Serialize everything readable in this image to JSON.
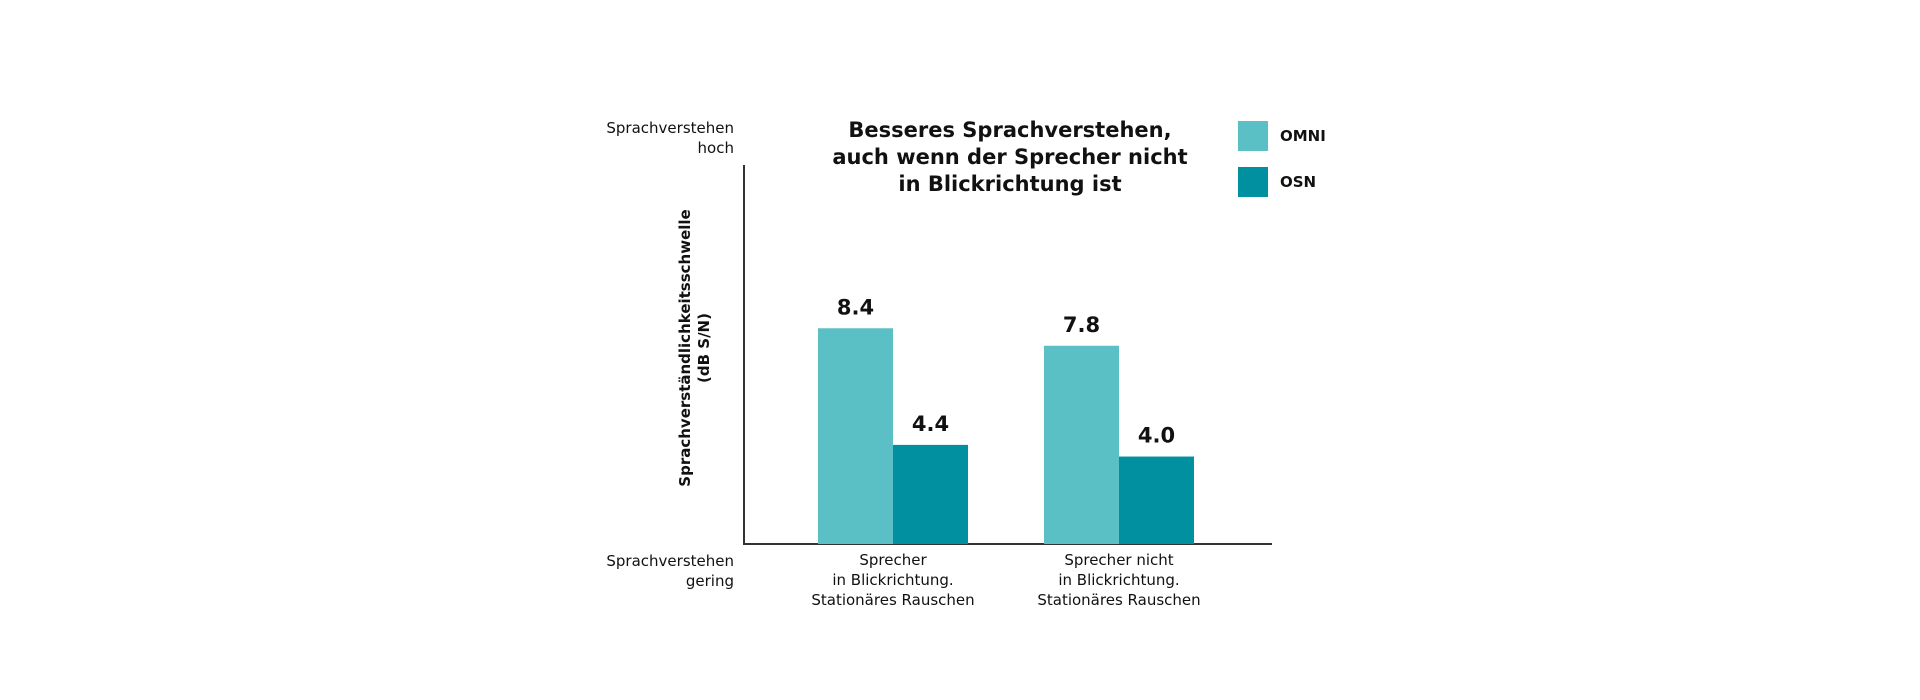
{
  "chart_data": {
    "type": "bar",
    "title_lines": [
      "Besseres Sprachverstehen,",
      "auch wenn der Sprecher nicht",
      "in Blickrichtung ist"
    ],
    "ylabel_lines": [
      "Sprachverständlichkeitsschwelle",
      "(dB S/N)"
    ],
    "y_top_label": [
      "Sprachverstehen",
      "hoch"
    ],
    "y_bottom_label": [
      "Sprachverstehen",
      "gering"
    ],
    "categories": [
      [
        "Sprecher",
        "in Blickrichtung.",
        "Stationäres Rauschen"
      ],
      [
        "Sprecher nicht",
        "in Blickrichtung.",
        "Stationäres Rauschen"
      ]
    ],
    "series": [
      {
        "name": "OMNI",
        "color": "#5bc0c6",
        "values": [
          8.4,
          7.8
        ],
        "value_labels": [
          "8.4",
          "7.8"
        ]
      },
      {
        "name": "OSN",
        "color": "#0090a0",
        "values": [
          4.4,
          4.0
        ],
        "value_labels": [
          "4.4",
          "4.0"
        ]
      }
    ],
    "y_axis_reversed": true,
    "ylim": [
      14.0,
      1.0
    ],
    "grid": false,
    "legend_position": "top-right"
  }
}
